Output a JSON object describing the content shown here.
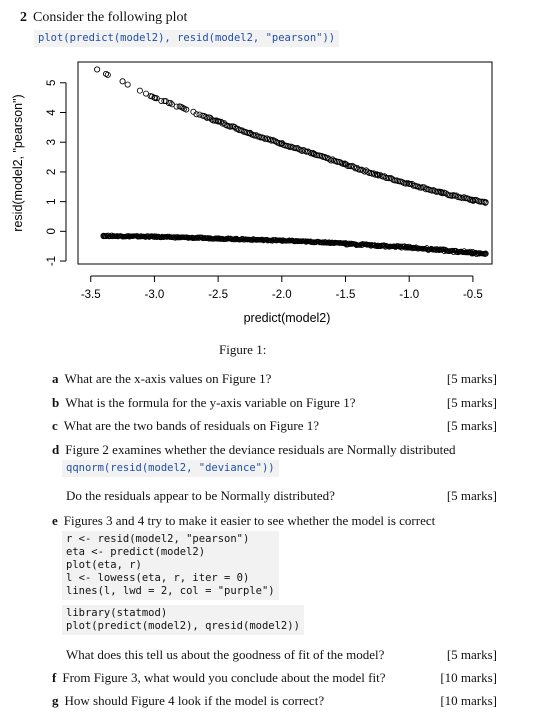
{
  "question": {
    "number": "2",
    "intro": "Consider the following plot",
    "plot_code": "plot(predict(model2), resid(model2, \"pearson\"))"
  },
  "chart_data": {
    "type": "scatter",
    "xlabel": "predict(model2)",
    "ylabel": "resid(model2, \"pearson\")",
    "xlim": [
      -3.6,
      -0.35
    ],
    "ylim": [
      -1.1,
      5.7
    ],
    "xticks": [
      "-3.5",
      "-3.0",
      "-2.5",
      "-2.0",
      "-1.5",
      "-1.0",
      "-0.5"
    ],
    "yticks": [
      "-1",
      "0",
      "1",
      "2",
      "3",
      "4",
      "5"
    ],
    "series": [
      {
        "points": [
          [
            -3.45,
            5.45
          ],
          [
            -3.38,
            5.3
          ],
          [
            -3.25,
            5.05
          ],
          [
            -3.0,
            4.5
          ],
          [
            -2.75,
            4.1
          ],
          [
            -2.5,
            3.7
          ],
          [
            -2.25,
            3.3
          ],
          [
            -2.0,
            2.95
          ],
          [
            -1.75,
            2.6
          ],
          [
            -1.5,
            2.25
          ],
          [
            -1.25,
            1.9
          ],
          [
            -1.0,
            1.6
          ],
          [
            -0.75,
            1.3
          ],
          [
            -0.5,
            1.05
          ],
          [
            -0.4,
            0.98
          ]
        ]
      },
      {
        "points": [
          [
            -3.4,
            -0.15
          ],
          [
            -3.0,
            -0.18
          ],
          [
            -2.5,
            -0.24
          ],
          [
            -2.0,
            -0.31
          ],
          [
            -1.5,
            -0.4
          ],
          [
            -1.0,
            -0.52
          ],
          [
            -0.5,
            -0.7
          ],
          [
            -0.4,
            -0.75
          ]
        ]
      }
    ]
  },
  "figure_caption": "Figure 1:",
  "parts": [
    {
      "label": "a",
      "text": "What are the x-axis values on Figure 1?",
      "marks": "[5 marks]"
    },
    {
      "label": "b",
      "text": "What is the formula for the y-axis variable on Figure 1?",
      "marks": "[5 marks]"
    },
    {
      "label": "c",
      "text": "What are the two bands of residuals on Figure 1?",
      "marks": "[5 marks]"
    },
    {
      "label": "d",
      "text": "Figure 2 examines whether the deviance residuals are Normally distributed",
      "marks": ""
    },
    {
      "label": "",
      "text": "Do the residuals appear to be Normally distributed?",
      "marks": "[5 marks]"
    },
    {
      "label": "e",
      "text": "Figures 3 and 4 try to make it easier to see whether the model is correct",
      "marks": ""
    },
    {
      "label": "",
      "text": "What does this tell us about the goodness of fit of the model?",
      "marks": "[5 marks]"
    },
    {
      "label": "f",
      "text": "From Figure 3, what would you conclude about the model fit?",
      "marks": "[10 marks]"
    },
    {
      "label": "g",
      "text": "How should Figure 4 look if the model is correct?",
      "marks": "[10 marks]"
    }
  ],
  "code_d": "qqnorm(resid(model2, \"deviance\"))",
  "code_e1": [
    "r <- resid(model2, \"pearson\")",
    "eta <- predict(model2)",
    "plot(eta, r)",
    "l <- lowess(eta, r, iter = 0)",
    "lines(l, lwd = 2, col = \"purple\")"
  ],
  "code_e2": [
    "library(statmod)",
    "plot(predict(model2), qresid(model2))"
  ]
}
